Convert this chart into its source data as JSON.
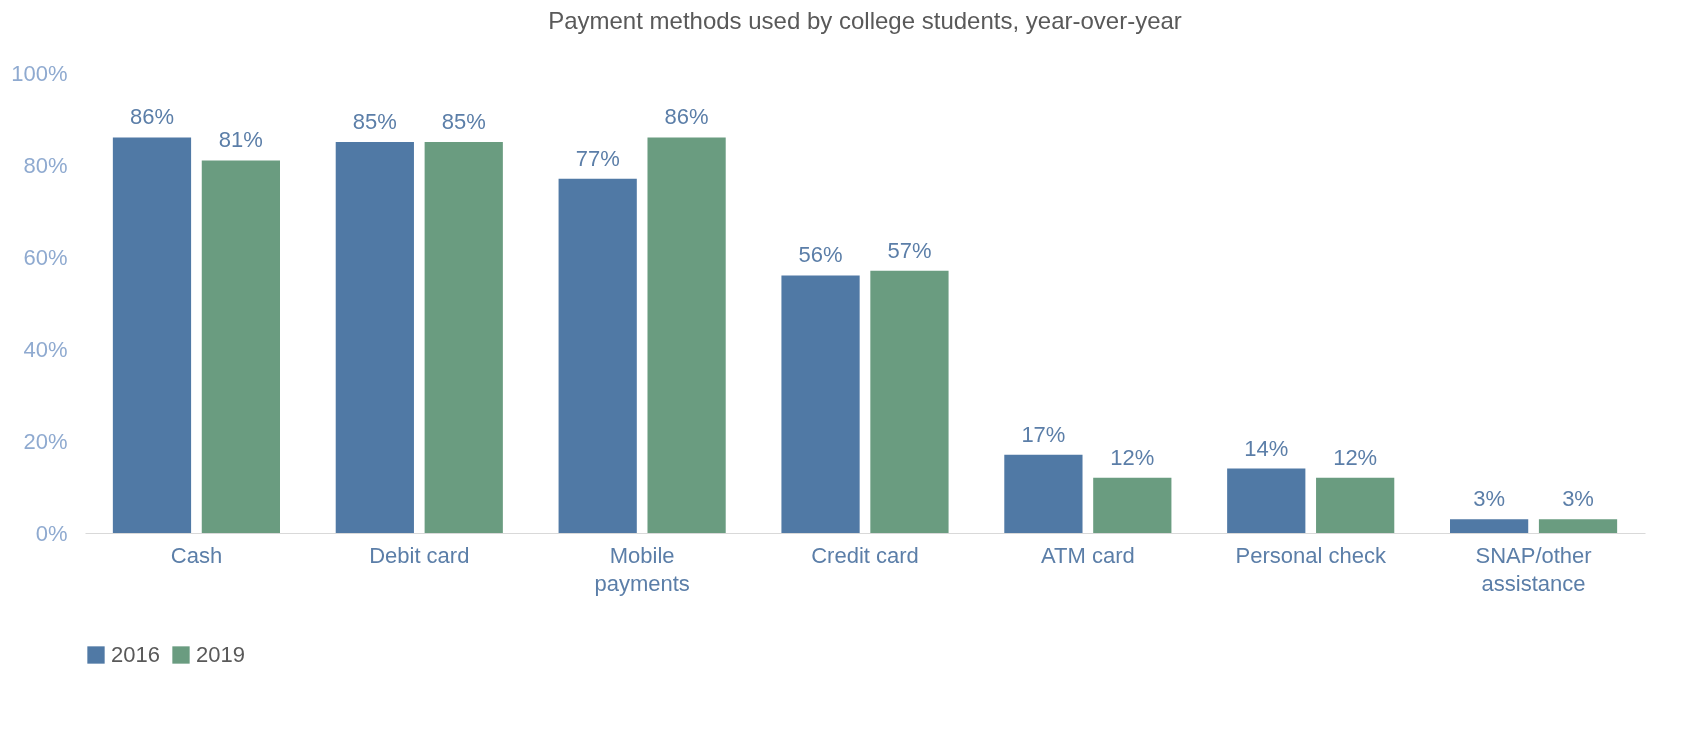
{
  "chart_data": {
    "type": "bar",
    "title": "Payment methods used by college students, year-over-year",
    "categories": [
      "Cash",
      "Debit card",
      "Mobile payments",
      "Credit card",
      "ATM card",
      "Personal check",
      "SNAP/other assistance"
    ],
    "series": [
      {
        "name": "2016",
        "color": "#5079a5",
        "values": [
          86,
          85,
          77,
          56,
          17,
          14,
          3
        ],
        "value_labels": [
          "86%",
          "85%",
          "77%",
          "56%",
          "17%",
          "14%",
          "3%"
        ]
      },
      {
        "name": "2019",
        "color": "#6a9c80",
        "values": [
          81,
          85,
          86,
          57,
          12,
          12,
          3
        ],
        "value_labels": [
          "81%",
          "85%",
          "86%",
          "57%",
          "12%",
          "12%",
          "3%"
        ]
      }
    ],
    "ylim": [
      0,
      100
    ],
    "yticks": [
      {
        "value": 0,
        "label": "0%"
      },
      {
        "value": 20,
        "label": "20%"
      },
      {
        "value": 40,
        "label": "40%"
      },
      {
        "value": 60,
        "label": "60%"
      },
      {
        "value": 80,
        "label": "80%"
      },
      {
        "value": 100,
        "label": "100%"
      }
    ],
    "grid": false,
    "legend": "bottom"
  }
}
